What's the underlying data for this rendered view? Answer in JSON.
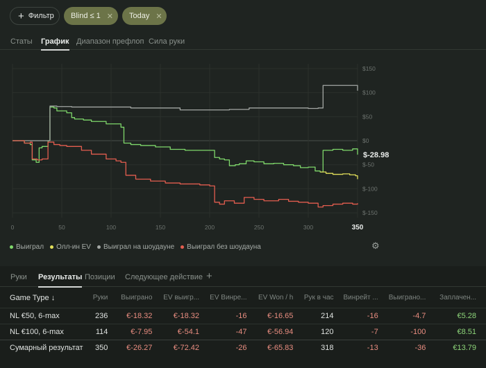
{
  "filters": {
    "add_label": "Фильтр",
    "chips": [
      {
        "label": "Blind ≤ 1"
      },
      {
        "label": "Today"
      }
    ]
  },
  "view_tabs": [
    "Статы",
    "График",
    "Диапазон префлоп",
    "Сила руки"
  ],
  "active_view_tab": "График",
  "chart_data": {
    "type": "line",
    "xlabel": "",
    "ylabel": "",
    "x_ticks": [
      0,
      50,
      100,
      150,
      200,
      250,
      300,
      350
    ],
    "y_ticks": [
      150,
      100,
      50,
      0,
      -50,
      -100,
      -150
    ],
    "y_tick_labels": [
      "$150",
      "$100",
      "$50",
      "$0",
      "$-50",
      "$-100",
      "$-150"
    ],
    "xlim": [
      0,
      350
    ],
    "ylim": [
      -160,
      160
    ],
    "current_value_label": "$-28.98",
    "x_last_label": "350",
    "series": [
      {
        "name": "Выиграл",
        "color": "#7fd86b",
        "points": [
          [
            0,
            0
          ],
          [
            10,
            0
          ],
          [
            12,
            -5
          ],
          [
            18,
            -8
          ],
          [
            20,
            -40
          ],
          [
            24,
            -45
          ],
          [
            27,
            -15
          ],
          [
            30,
            -12
          ],
          [
            36,
            0
          ],
          [
            38,
            70
          ],
          [
            42,
            68
          ],
          [
            45,
            62
          ],
          [
            55,
            58
          ],
          [
            60,
            48
          ],
          [
            63,
            45
          ],
          [
            72,
            43
          ],
          [
            80,
            40
          ],
          [
            95,
            35
          ],
          [
            110,
            28
          ],
          [
            113,
            -5
          ],
          [
            120,
            -8
          ],
          [
            130,
            -10
          ],
          [
            145,
            -13
          ],
          [
            160,
            -18
          ],
          [
            175,
            -20
          ],
          [
            200,
            -20
          ],
          [
            205,
            -35
          ],
          [
            210,
            -38
          ],
          [
            215,
            -40
          ],
          [
            220,
            -52
          ],
          [
            226,
            -50
          ],
          [
            230,
            -48
          ],
          [
            237,
            -42
          ],
          [
            245,
            -44
          ],
          [
            255,
            -48
          ],
          [
            265,
            -47
          ],
          [
            275,
            -50
          ],
          [
            285,
            -52
          ],
          [
            292,
            -56
          ],
          [
            300,
            -55
          ],
          [
            307,
            -63
          ],
          [
            312,
            -65
          ],
          [
            315,
            -20
          ],
          [
            325,
            -18
          ],
          [
            335,
            -20
          ],
          [
            345,
            -17
          ],
          [
            350,
            -29
          ]
        ]
      },
      {
        "name": "Олл-ин EV",
        "color": "#e2df5a",
        "points": [
          [
            312,
            -65
          ],
          [
            318,
            -68
          ],
          [
            325,
            -70
          ],
          [
            335,
            -69
          ],
          [
            342,
            -71
          ],
          [
            348,
            -73
          ],
          [
            350,
            -80
          ]
        ]
      },
      {
        "name": "Выиграл на шоудауне",
        "color": "#a3a7a4",
        "points": [
          [
            0,
            0
          ],
          [
            30,
            0
          ],
          [
            36,
            0
          ],
          [
            38,
            72
          ],
          [
            45,
            71
          ],
          [
            60,
            70
          ],
          [
            80,
            70
          ],
          [
            100,
            70
          ],
          [
            110,
            70
          ],
          [
            120,
            68
          ],
          [
            160,
            68
          ],
          [
            170,
            64
          ],
          [
            220,
            65
          ],
          [
            230,
            65
          ],
          [
            240,
            68
          ],
          [
            300,
            67
          ],
          [
            310,
            68
          ],
          [
            315,
            115
          ],
          [
            348,
            115
          ],
          [
            350,
            104
          ]
        ]
      },
      {
        "name": "Выиграл без шоудауна",
        "color": "#e35d4f",
        "points": [
          [
            0,
            0
          ],
          [
            10,
            0
          ],
          [
            12,
            -5
          ],
          [
            18,
            -3
          ],
          [
            20,
            -38
          ],
          [
            25,
            -40
          ],
          [
            30,
            -38
          ],
          [
            36,
            -3
          ],
          [
            42,
            -8
          ],
          [
            48,
            -10
          ],
          [
            55,
            -12
          ],
          [
            70,
            -20
          ],
          [
            80,
            -28
          ],
          [
            95,
            -38
          ],
          [
            105,
            -42
          ],
          [
            110,
            -45
          ],
          [
            115,
            -72
          ],
          [
            125,
            -80
          ],
          [
            140,
            -84
          ],
          [
            155,
            -88
          ],
          [
            170,
            -90
          ],
          [
            190,
            -92
          ],
          [
            200,
            -94
          ],
          [
            205,
            -128
          ],
          [
            210,
            -132
          ],
          [
            215,
            -125
          ],
          [
            225,
            -130
          ],
          [
            235,
            -118
          ],
          [
            245,
            -122
          ],
          [
            255,
            -125
          ],
          [
            270,
            -122
          ],
          [
            280,
            -126
          ],
          [
            290,
            -128
          ],
          [
            300,
            -130
          ],
          [
            310,
            -138
          ],
          [
            315,
            -135
          ],
          [
            325,
            -132
          ],
          [
            335,
            -130
          ],
          [
            345,
            -132
          ],
          [
            350,
            -130
          ]
        ]
      }
    ]
  },
  "legend": [
    "Выиграл",
    "Олл-ин EV",
    "Выиграл на шоудауне",
    "Выиграл без шоудауна"
  ],
  "section_tabs": [
    "Руки",
    "Результаты",
    "Позиции",
    "Следующее действие"
  ],
  "active_section_tab": "Результаты",
  "add_tab_label": "+",
  "table": {
    "sort_label": "Game Type ↓",
    "columns": [
      "Руки",
      "Выиграно",
      "EV выигр...",
      "EV Винре...",
      "EV Won / h",
      "Рук в час",
      "Винрейт ...",
      "Выиграно...",
      "Заплачен..."
    ],
    "rows": [
      {
        "name": "NL €50, 6-max",
        "cells": [
          "236",
          "€-18.32",
          "€-18.32",
          "-16",
          "€-16.65",
          "214",
          "-16",
          "-4.7",
          "€5.28"
        ]
      },
      {
        "name": "NL €100, 6-max",
        "cells": [
          "114",
          "€-7.95",
          "€-54.1",
          "-47",
          "€-56.94",
          "120",
          "-7",
          "-100",
          "€8.51"
        ]
      }
    ],
    "total": {
      "name": "Сумарный результат",
      "cells": [
        "350",
        "€-26.27",
        "€-72.42",
        "-26",
        "€-65.83",
        "318",
        "-13",
        "-36",
        "€13.79"
      ]
    }
  },
  "icons": {
    "settings": "gear-icon",
    "remove": "close-icon",
    "add": "plus-icon"
  }
}
